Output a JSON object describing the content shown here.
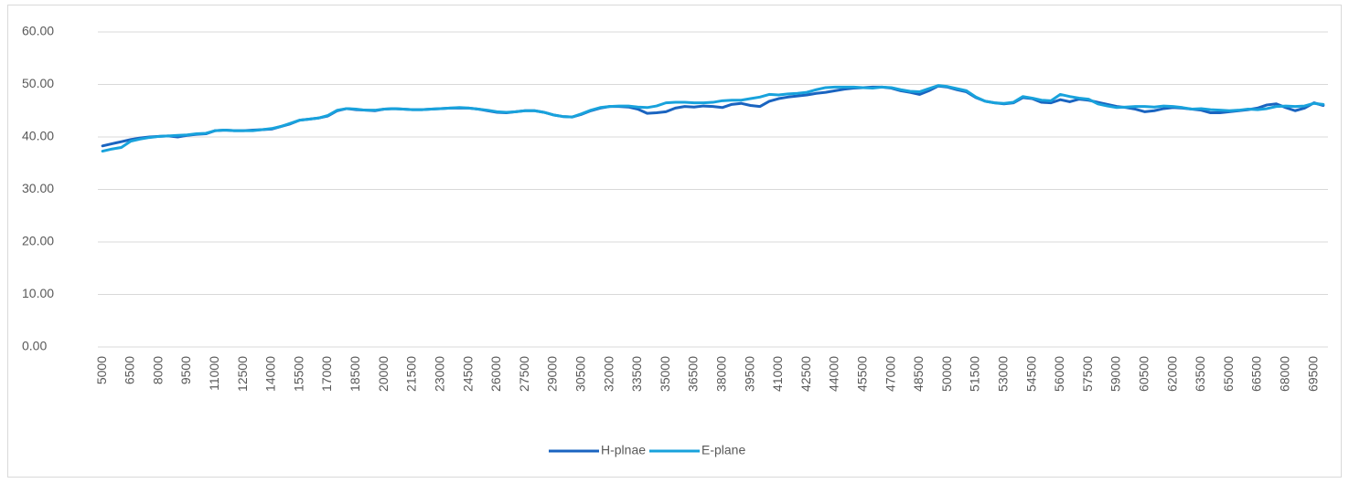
{
  "chart_data": {
    "type": "line",
    "categories": [
      5000,
      null,
      null,
      6500,
      null,
      null,
      8000,
      null,
      null,
      9500,
      null,
      null,
      11000,
      null,
      null,
      12500,
      null,
      null,
      14000,
      null,
      null,
      15500,
      null,
      null,
      17000,
      null,
      null,
      18500,
      null,
      null,
      20000,
      null,
      null,
      21500,
      null,
      null,
      23000,
      null,
      null,
      24500,
      null,
      null,
      26000,
      null,
      null,
      27500,
      null,
      null,
      29000,
      null,
      null,
      30500,
      null,
      null,
      32000,
      null,
      null,
      33500,
      null,
      null,
      35000,
      null,
      null,
      36500,
      null,
      null,
      38000,
      null,
      null,
      39500,
      null,
      null,
      41000,
      null,
      null,
      42500,
      null,
      null,
      44000,
      null,
      null,
      45500,
      null,
      null,
      47000,
      null,
      null,
      48500,
      null,
      null,
      50000,
      null,
      null,
      51500,
      null,
      null,
      53000,
      null,
      null,
      54500,
      null,
      null,
      56000,
      null,
      null,
      57500,
      null,
      null,
      59000,
      null,
      null,
      60500,
      null,
      null,
      62000,
      null,
      null,
      63500,
      null,
      null,
      65000,
      null,
      null,
      66500,
      null,
      null,
      68000,
      null,
      null,
      69500,
      null
    ],
    "series": [
      {
        "name": "H-plnae",
        "color": "#1a64c0",
        "values": [
          38.3,
          38.7,
          39.1,
          39.5,
          39.8,
          40.0,
          40.1,
          40.2,
          40.0,
          40.3,
          40.5,
          40.6,
          41.2,
          41.3,
          41.2,
          41.2,
          41.3,
          41.4,
          41.5,
          42.0,
          42.5,
          43.2,
          43.4,
          43.6,
          44.0,
          45.0,
          45.4,
          45.2,
          45.1,
          45.0,
          45.3,
          45.4,
          45.3,
          45.2,
          45.2,
          45.3,
          45.4,
          45.5,
          45.5,
          45.5,
          45.3,
          45.0,
          44.7,
          44.6,
          44.8,
          45.0,
          45.0,
          44.7,
          44.2,
          43.9,
          43.8,
          44.3,
          45.0,
          45.5,
          45.8,
          45.8,
          45.7,
          45.3,
          44.5,
          44.6,
          44.8,
          45.5,
          45.8,
          45.7,
          45.9,
          45.8,
          45.6,
          46.2,
          46.4,
          46.0,
          45.8,
          46.8,
          47.3,
          47.6,
          47.8,
          48.0,
          48.3,
          48.5,
          48.8,
          49.1,
          49.3,
          49.4,
          49.5,
          49.5,
          49.3,
          48.8,
          48.5,
          48.1,
          48.8,
          49.7,
          49.5,
          49.0,
          48.6,
          47.5,
          46.8,
          46.5,
          46.3,
          46.5,
          47.5,
          47.3,
          46.6,
          46.5,
          47.1,
          46.7,
          47.2,
          47.0,
          46.6,
          46.2,
          45.8,
          45.6,
          45.3,
          44.8,
          45.0,
          45.4,
          45.6,
          45.5,
          45.3,
          45.1,
          44.6,
          44.6,
          44.8,
          45.0,
          45.2,
          45.5,
          46.1,
          46.3,
          45.6,
          45.0,
          45.5,
          46.5,
          46.0
        ]
      },
      {
        "name": "E-plane",
        "color": "#18a2dc",
        "values": [
          37.3,
          37.7,
          38.0,
          39.2,
          39.6,
          39.9,
          40.1,
          40.2,
          40.3,
          40.4,
          40.6,
          40.7,
          41.2,
          41.3,
          41.2,
          41.2,
          41.2,
          41.4,
          41.6,
          42.0,
          42.6,
          43.2,
          43.4,
          43.6,
          44.1,
          45.1,
          45.4,
          45.3,
          45.1,
          45.1,
          45.3,
          45.4,
          45.3,
          45.2,
          45.2,
          45.3,
          45.4,
          45.5,
          45.6,
          45.5,
          45.3,
          45.1,
          44.8,
          44.7,
          44.8,
          45.0,
          45.0,
          44.7,
          44.2,
          43.9,
          43.8,
          44.4,
          45.1,
          45.6,
          45.8,
          45.9,
          45.9,
          45.7,
          45.6,
          45.9,
          46.5,
          46.6,
          46.6,
          46.5,
          46.5,
          46.6,
          46.9,
          47.0,
          47.0,
          47.3,
          47.6,
          48.1,
          48.0,
          48.2,
          48.3,
          48.5,
          49.0,
          49.4,
          49.5,
          49.5,
          49.5,
          49.4,
          49.3,
          49.5,
          49.4,
          49.0,
          48.7,
          48.6,
          49.2,
          49.8,
          49.6,
          49.2,
          48.8,
          47.6,
          46.8,
          46.5,
          46.4,
          46.6,
          47.7,
          47.4,
          47.0,
          46.9,
          48.1,
          47.7,
          47.4,
          47.2,
          46.3,
          45.9,
          45.6,
          45.7,
          45.8,
          45.8,
          45.7,
          45.9,
          45.8,
          45.6,
          45.3,
          45.4,
          45.2,
          45.1,
          45.0,
          45.1,
          45.3,
          45.2,
          45.4,
          45.8,
          45.9,
          45.8,
          45.9,
          46.4,
          46.2
        ]
      }
    ],
    "ylim": [
      0,
      60
    ],
    "yticks": [
      {
        "value": 0,
        "label": "0.00"
      },
      {
        "value": 10,
        "label": "10.00"
      },
      {
        "value": 20,
        "label": "20.00"
      },
      {
        "value": 30,
        "label": "30.00"
      },
      {
        "value": 40,
        "label": "40.00"
      },
      {
        "value": 50,
        "label": "50.00"
      },
      {
        "value": 60,
        "label": "60.00"
      }
    ],
    "grid": true,
    "legend": "bottom"
  }
}
